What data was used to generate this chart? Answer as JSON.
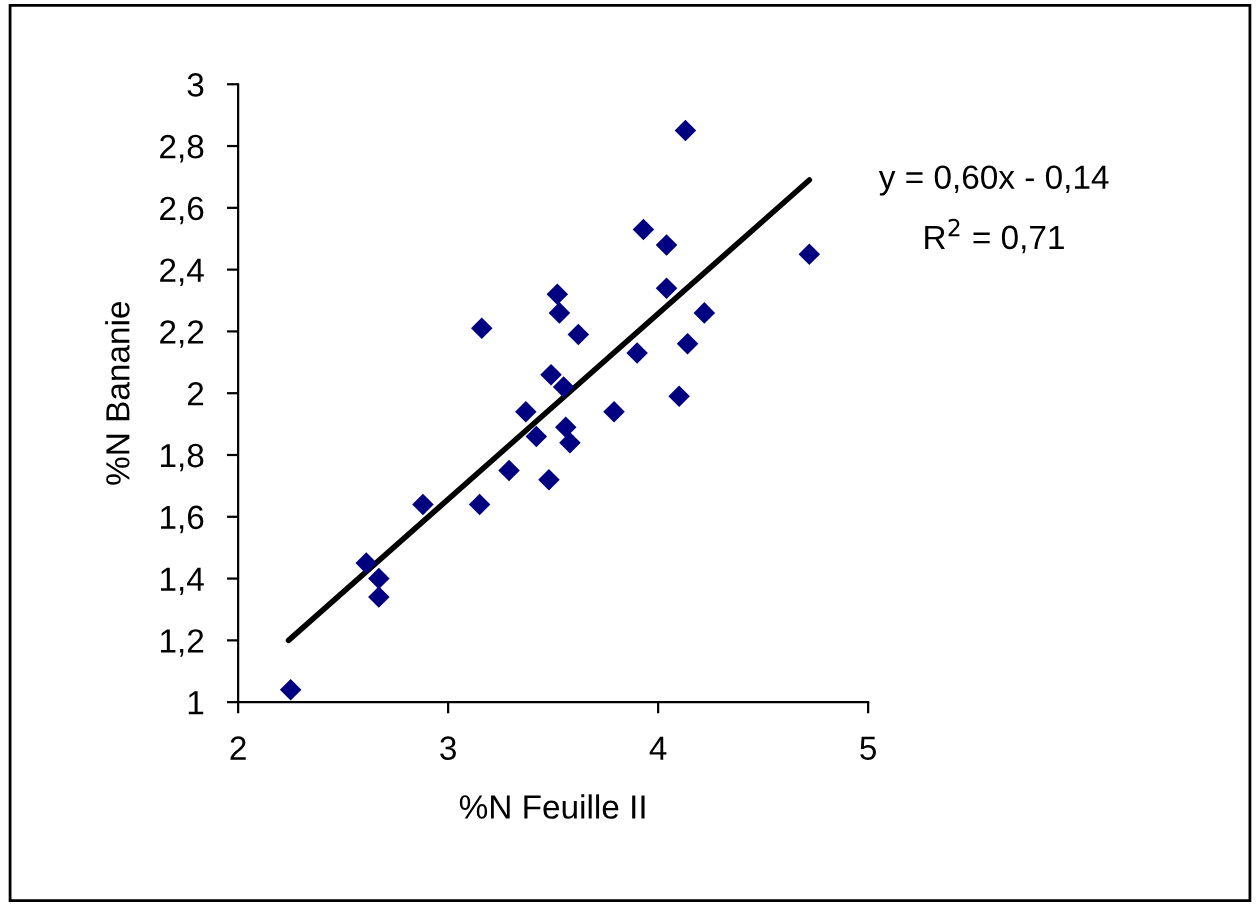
{
  "chart_data": {
    "type": "scatter",
    "xlabel": "%N Feuille II",
    "ylabel": "%N Bananie",
    "series": [
      {
        "color": "#000080",
        "marker": "diamond",
        "x": [
          2.25,
          2.61,
          2.67,
          2.67,
          2.88,
          3.15,
          3.16,
          3.29,
          3.37,
          3.42,
          3.48,
          3.49,
          3.52,
          3.53,
          3.55,
          3.56,
          3.58,
          3.62,
          3.79,
          3.9,
          3.93,
          4.04,
          4.04,
          4.1,
          4.13,
          4.14,
          4.22,
          4.72
        ],
        "values": [
          1.04,
          1.45,
          1.4,
          1.34,
          1.64,
          1.64,
          2.21,
          1.75,
          1.94,
          1.86,
          1.72,
          2.06,
          2.32,
          2.26,
          2.02,
          1.89,
          1.84,
          2.19,
          1.94,
          2.13,
          2.53,
          2.48,
          2.34,
          1.99,
          2.85,
          2.16,
          2.26,
          2.45
        ]
      },
      {
        "type": "line",
        "color": "#000000",
        "line_style": "solid",
        "marker": "none",
        "x": [
          2.24,
          4.72
        ],
        "values": [
          1.2,
          2.69
        ]
      }
    ],
    "annotations": [
      "y = 0,60x - 0,14",
      "R$^{2}$ = 0,71"
    ],
    "xlim": [
      2,
      5
    ],
    "xticks": [
      2,
      3,
      4,
      5
    ],
    "ylim": [
      1,
      3
    ],
    "yticks": [
      1,
      {
        "value": 1.2,
        "label": "1,2"
      },
      {
        "value": 1.4,
        "label": "1,4"
      },
      {
        "value": 1.6,
        "label": "1,6"
      },
      {
        "value": 1.8,
        "label": "1,8"
      },
      2,
      {
        "value": 2.2,
        "label": "2,2"
      },
      {
        "value": 2.4,
        "label": "2,4"
      },
      {
        "value": 2.6,
        "label": "2,6"
      },
      {
        "value": 2.8,
        "label": "2,8"
      },
      3
    ],
    "grid": false,
    "legend": false
  }
}
